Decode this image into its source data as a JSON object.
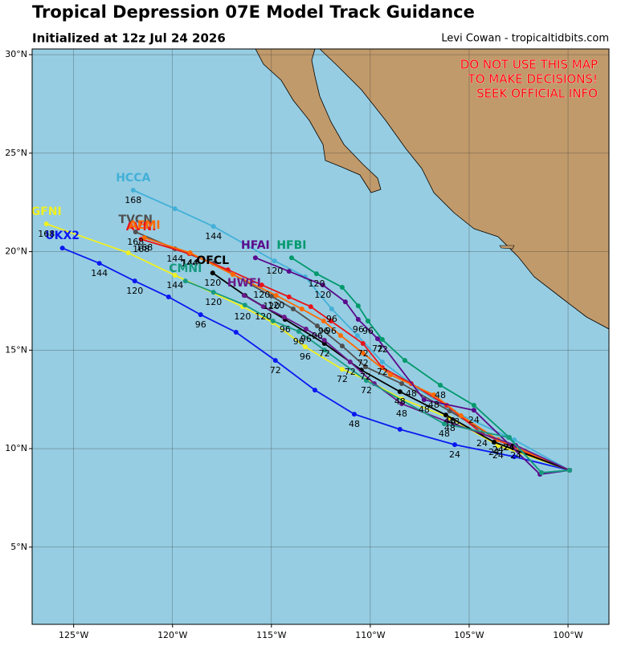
{
  "header": {
    "title": "Tropical Depression 07E Model Track Guidance",
    "subtitle": "Initialized at 12z Jul 24 2026",
    "credit": "Levi Cowan - tropicaltidbits.com"
  },
  "warning": [
    "DO NOT USE THIS MAP",
    "TO MAKE DECISIONS!",
    "SEEK OFFICIAL INFO"
  ],
  "map": {
    "lonlim": [
      -127.1,
      -97.93
    ],
    "latlim": [
      1.08,
      30.29
    ],
    "lonticks": [
      {
        "value": -125,
        "label": "125°W"
      },
      {
        "value": -120,
        "label": "120°W"
      },
      {
        "value": -115,
        "label": "115°W"
      },
      {
        "value": -110,
        "label": "110°W"
      },
      {
        "value": -105,
        "label": "105°W"
      },
      {
        "value": -100,
        "label": "100°W"
      }
    ],
    "latticks": [
      {
        "value": 5,
        "label": "5°N"
      },
      {
        "value": 10,
        "label": "10°N"
      },
      {
        "value": 15,
        "label": "15°N"
      },
      {
        "value": 20,
        "label": "20°N"
      },
      {
        "value": 25,
        "label": "25°N"
      },
      {
        "value": 30,
        "label": "30°N"
      }
    ],
    "tracks": [
      {
        "name": "HCCA",
        "color": "#43b0d8",
        "lon": [
          -99.92,
          -102.72,
          -105.77,
          -107.6,
          -109.39,
          -110.65,
          -111.95,
          -113.29,
          -114.84,
          -117.93,
          -119.88,
          -121.99
        ],
        "lat": [
          8.9,
          10.45,
          11.87,
          13.05,
          14.4,
          15.74,
          17.09,
          18.72,
          19.53,
          21.28,
          22.18,
          23.12
        ],
        "hours": [
          null,
          null,
          "48",
          null,
          "72",
          null,
          "96",
          null,
          "120",
          "144",
          null,
          "168"
        ]
      },
      {
        "name": "TVCN",
        "color": "#505050",
        "lon": [
          -99.92,
          -103.54,
          -105.98,
          -108.41,
          -110.24,
          -111.42,
          -112.68,
          -113.9,
          -115.0,
          -117.93,
          -119.88,
          -121.87
        ],
        "lat": [
          8.9,
          10.45,
          11.91,
          13.3,
          14.15,
          15.21,
          16.23,
          17.09,
          17.74,
          19.41,
          20.14,
          21.0
        ],
        "hours": [
          null,
          "24",
          "48",
          null,
          "72",
          null,
          "96",
          null,
          "120",
          null,
          "144",
          "168"
        ]
      },
      {
        "name": "AVNI",
        "color": "#e8141b",
        "lon": [
          -99.92,
          -101.54,
          -104.35,
          -106.14,
          -107.93,
          -109.39,
          -110.37,
          -111.99,
          -113.01,
          -114.11,
          -115.49,
          -117.2,
          -119.15,
          -121.59
        ],
        "lat": [
          8.9,
          9.55,
          10.77,
          12.2,
          13.3,
          14.11,
          15.34,
          16.48,
          17.21,
          17.7,
          18.31,
          19.08,
          19.9,
          20.63
        ],
        "hours": [
          null,
          null,
          "24",
          null,
          "48",
          null,
          "72",
          "96",
          null,
          null,
          "120",
          null,
          "144",
          "168"
        ]
      },
      {
        "name": "AEMI",
        "color": "#ff6a00",
        "lon": [
          -99.92,
          -103.54,
          -105.41,
          -106.79,
          -108.98,
          -110.37,
          -111.5,
          -112.36,
          -113.46,
          -114.76,
          -116.95,
          -119.11,
          -121.42
        ],
        "lat": [
          8.9,
          10.45,
          11.67,
          12.73,
          13.75,
          14.85,
          15.74,
          16.48,
          17.09,
          17.78,
          18.84,
          19.94,
          20.71
        ],
        "hours": [
          null,
          "24",
          null,
          "48",
          null,
          "72",
          null,
          "96",
          null,
          "120",
          null,
          "144",
          "168"
        ]
      },
      {
        "name": "UKX2",
        "color": "#0b18f0",
        "lon": [
          -99.92,
          -102.72,
          -105.73,
          -108.5,
          -110.81,
          -112.8,
          -114.8,
          -116.79,
          -118.58,
          -120.2,
          -121.91,
          -123.7,
          -125.57
        ],
        "lat": [
          8.9,
          9.59,
          10.2,
          10.98,
          11.75,
          12.97,
          14.48,
          15.91,
          16.8,
          17.7,
          18.51,
          19.41,
          20.18
        ],
        "hours": [
          null,
          null,
          "24",
          null,
          "48",
          null,
          "72",
          null,
          "96",
          null,
          "120",
          "144",
          null
        ]
      },
      {
        "name": "GFNI",
        "color": "#f0f020",
        "lon": [
          -99.92,
          -103.54,
          -105.98,
          -108.41,
          -110.2,
          -111.42,
          -113.29,
          -114.92,
          -116.46,
          -119.88,
          -122.24,
          -126.38
        ],
        "lat": [
          8.9,
          10.16,
          11.55,
          12.53,
          13.5,
          14.03,
          15.17,
          16.4,
          17.21,
          18.8,
          19.94,
          21.41
        ],
        "hours": [
          null,
          "24",
          "48",
          null,
          null,
          "72",
          "96",
          null,
          "120",
          "144",
          null,
          "168"
        ]
      },
      {
        "name": "OFCL",
        "color": "#000000",
        "lon": [
          -99.92,
          -103.74,
          -106.18,
          -108.5,
          -110.45,
          -112.32,
          -114.31,
          -116.34,
          -117.97
        ],
        "lat": [
          8.9,
          10.33,
          11.71,
          12.89,
          13.99,
          15.34,
          16.56,
          17.78,
          18.92
        ],
        "hours": [
          null,
          "24",
          null,
          "48",
          null,
          "72",
          "96",
          null,
          "120"
        ]
      },
      {
        "name": "HFAI",
        "color": "#5a0a8c",
        "lon": [
          -99.92,
          -101.42,
          -104.76,
          -107.28,
          -109.63,
          -110.61,
          -111.26,
          -112.4,
          -114.11,
          -115.81
        ],
        "lat": [
          8.9,
          8.7,
          11.95,
          12.48,
          15.58,
          16.56,
          17.45,
          18.31,
          19.0,
          19.69
        ],
        "hours": [
          null,
          null,
          "24",
          "48",
          "72",
          "96",
          null,
          "120",
          null,
          null
        ]
      },
      {
        "name": "HFBI",
        "color": "#00996b",
        "lon": [
          -99.92,
          -101.34,
          -102.97,
          -104.76,
          -106.46,
          -108.25,
          -109.39,
          -110.12,
          -110.61,
          -111.42,
          -112.72,
          -113.98
        ],
        "lat": [
          8.9,
          8.78,
          10.57,
          12.2,
          13.22,
          14.48,
          15.54,
          16.48,
          17.25,
          18.19,
          18.88,
          19.69
        ],
        "hours": [
          null,
          null,
          "24",
          null,
          "48",
          null,
          "72",
          "96",
          null,
          null,
          "120",
          null
        ]
      },
      {
        "name": "HWFI",
        "color": "#6a1a8a",
        "lon": [
          -99.92,
          -102.64,
          -106.14,
          -108.41,
          -109.8,
          -111.02,
          -112.32,
          -113.25,
          -114.35,
          -115.41,
          -116.38
        ],
        "lat": [
          8.9,
          10.16,
          11.38,
          12.28,
          13.3,
          14.4,
          15.5,
          16.07,
          16.68,
          17.21,
          17.78
        ],
        "hours": [
          null,
          "24",
          null,
          "48",
          null,
          "72",
          null,
          "96",
          null,
          "120",
          null
        ]
      },
      {
        "name": "CMNI",
        "color": "#179a80",
        "lon": [
          -99.92,
          -101.34,
          -103.01,
          -106.26,
          -110.2,
          -112.32,
          -113.62,
          -114.92,
          -116.34,
          -117.93,
          -119.35
        ],
        "lat": [
          8.9,
          8.78,
          10.57,
          11.26,
          13.46,
          15.01,
          15.95,
          16.48,
          17.29,
          17.94,
          18.51
        ],
        "hours": [
          null,
          null,
          "24",
          "48",
          "72",
          null,
          "96",
          null,
          null,
          "120",
          null
        ]
      }
    ]
  }
}
